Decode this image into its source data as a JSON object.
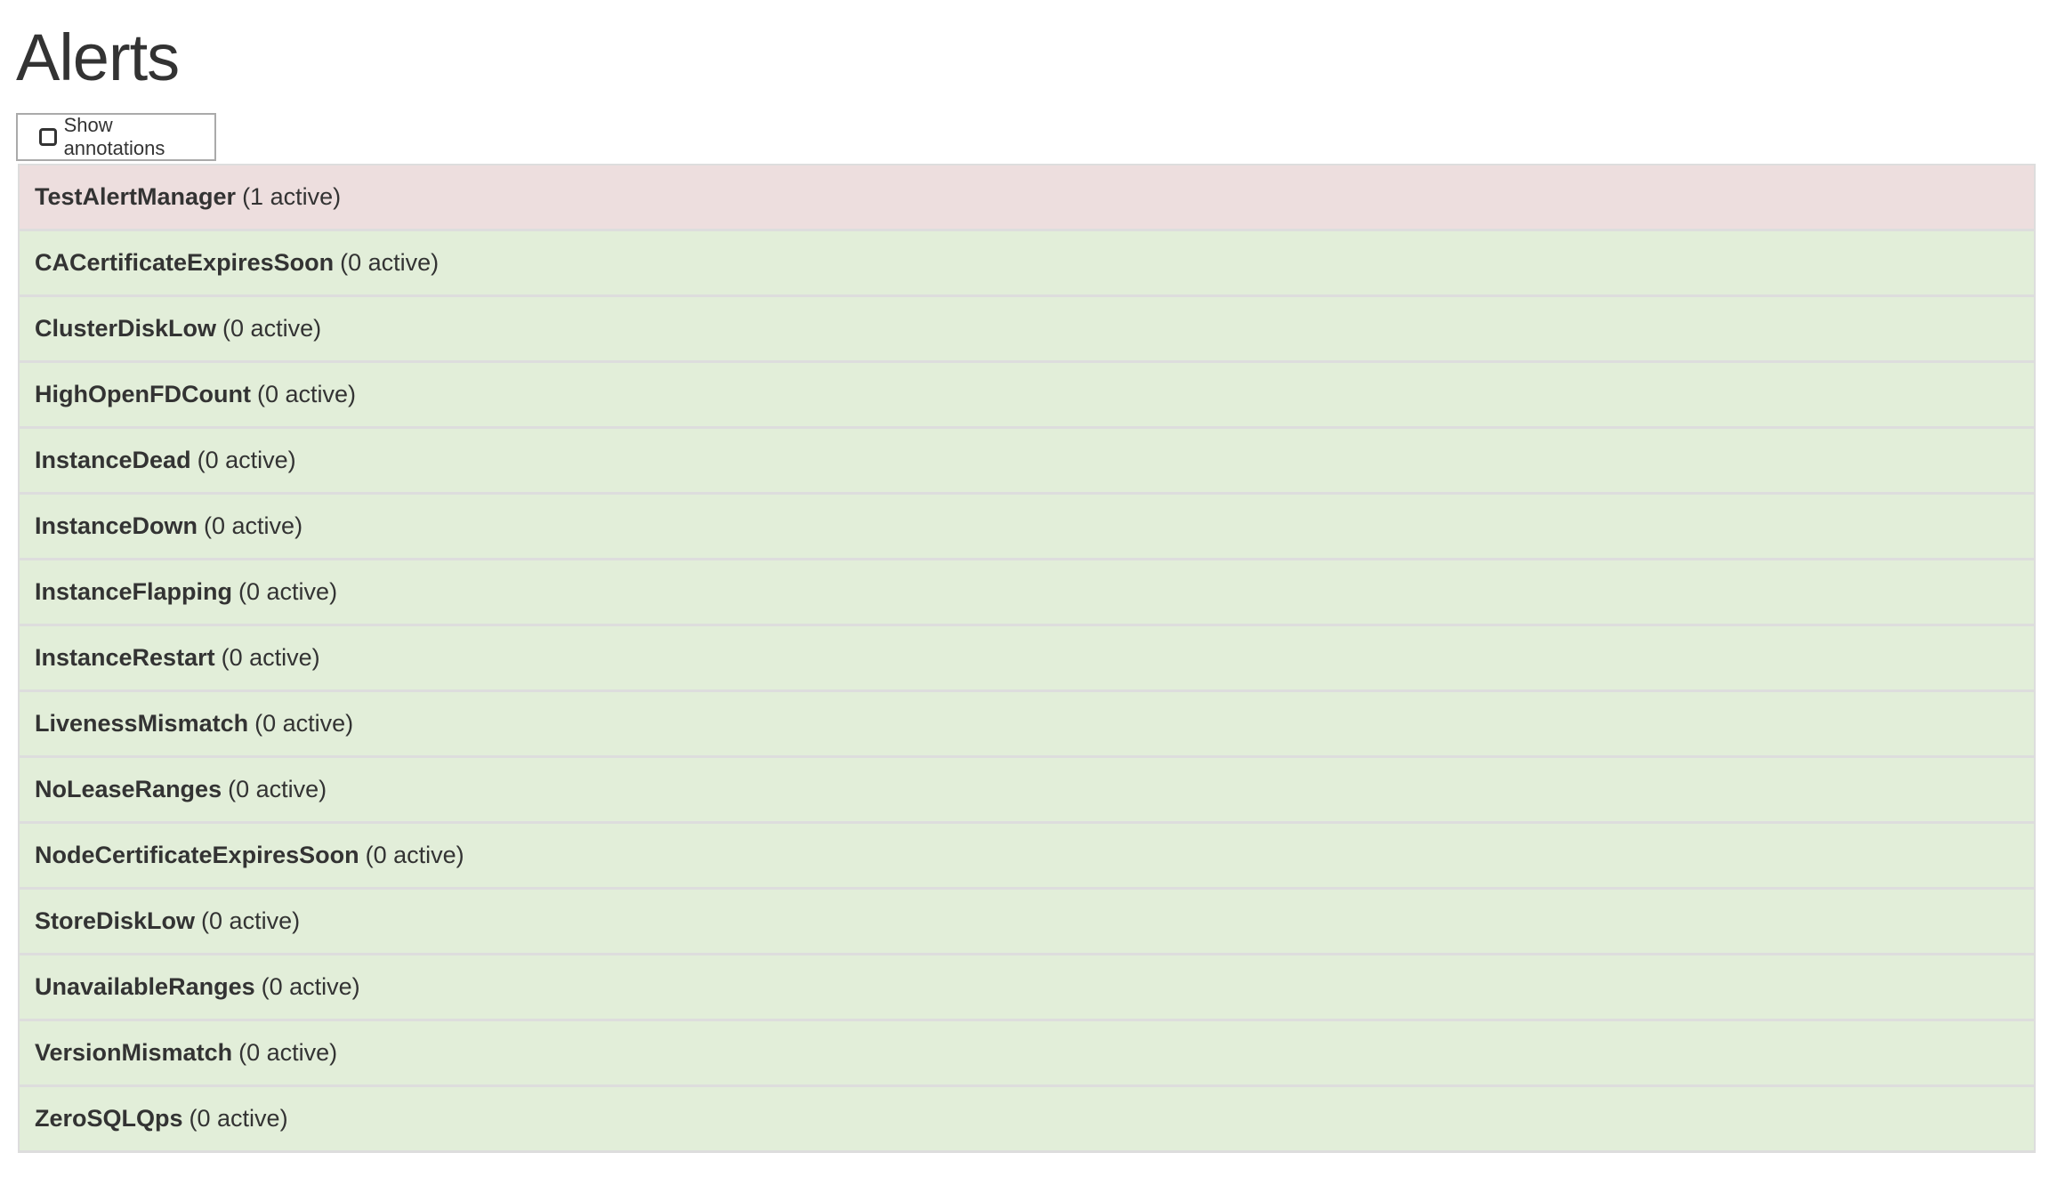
{
  "title": "Alerts",
  "show_annotations": {
    "label": "Show annotations",
    "checked": false
  },
  "colors": {
    "firing": "#eddede",
    "inactive": "#e2eed9",
    "border": "#dddddd"
  },
  "alerts": [
    {
      "name": "TestAlertManager",
      "count": "(1 active)",
      "state": "firing"
    },
    {
      "name": "CACertificateExpiresSoon",
      "count": "(0 active)",
      "state": "inactive"
    },
    {
      "name": "ClusterDiskLow",
      "count": "(0 active)",
      "state": "inactive"
    },
    {
      "name": "HighOpenFDCount",
      "count": "(0 active)",
      "state": "inactive"
    },
    {
      "name": "InstanceDead",
      "count": "(0 active)",
      "state": "inactive"
    },
    {
      "name": "InstanceDown",
      "count": "(0 active)",
      "state": "inactive"
    },
    {
      "name": "InstanceFlapping",
      "count": "(0 active)",
      "state": "inactive"
    },
    {
      "name": "InstanceRestart",
      "count": "(0 active)",
      "state": "inactive"
    },
    {
      "name": "LivenessMismatch",
      "count": "(0 active)",
      "state": "inactive"
    },
    {
      "name": "NoLeaseRanges",
      "count": "(0 active)",
      "state": "inactive"
    },
    {
      "name": "NodeCertificateExpiresSoon",
      "count": "(0 active)",
      "state": "inactive"
    },
    {
      "name": "StoreDiskLow",
      "count": "(0 active)",
      "state": "inactive"
    },
    {
      "name": "UnavailableRanges",
      "count": "(0 active)",
      "state": "inactive"
    },
    {
      "name": "VersionMismatch",
      "count": "(0 active)",
      "state": "inactive"
    },
    {
      "name": "ZeroSQLQps",
      "count": "(0 active)",
      "state": "inactive"
    }
  ]
}
